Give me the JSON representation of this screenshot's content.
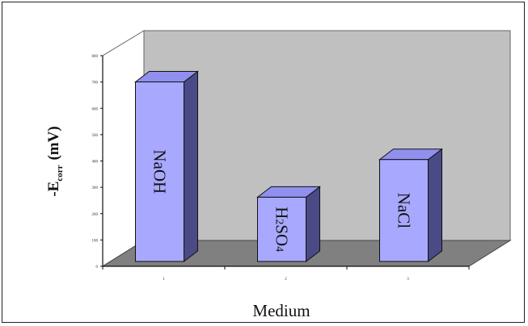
{
  "chart_data": {
    "type": "bar",
    "x_ticks": [
      "1",
      "2",
      "3"
    ],
    "categories": [
      "NaOH",
      "H2SO4",
      "NaCl"
    ],
    "values": [
      731,
      293,
      436
    ],
    "ylabel": "-E",
    "ylabel_sub": "corr",
    "ylabel_unit": "(mV)",
    "xlabel": "Medium",
    "ylim": [
      0,
      800
    ],
    "yticks": [
      "0",
      "100",
      "200",
      "300",
      "400",
      "500",
      "600",
      "700",
      "800"
    ],
    "grid": false,
    "legend": "none",
    "style": "3d",
    "colors": {
      "bar_front": "#a8a8ff",
      "bar_top": "#9090ef",
      "bar_side": "#4a4a86",
      "back_wall": "#c0c0c0",
      "floor": "#808080"
    }
  }
}
